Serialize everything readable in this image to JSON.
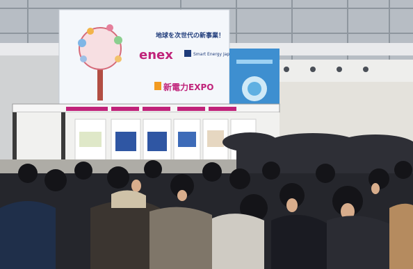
{
  "scene": {
    "subject": "exhibition-hall-crowd",
    "colors": {
      "ceiling": "#c9ccd0",
      "wall": "#e6e6e3",
      "floor": "#b8b6b0",
      "crowd_dark": "#23242a",
      "billboard_left": "#f4f7fb",
      "billboard_right": "#3e8fd0",
      "accent_magenta": "#c0237a",
      "accent_orange": "#f29b21"
    }
  },
  "billboard": {
    "headline": "地球を次世代の新事業！",
    "logo_enex": "enex",
    "logo_smart": "Smart Energy Japan",
    "logo_expo": "新電力EXPO"
  },
  "right_billboard": {
    "headline": ""
  }
}
